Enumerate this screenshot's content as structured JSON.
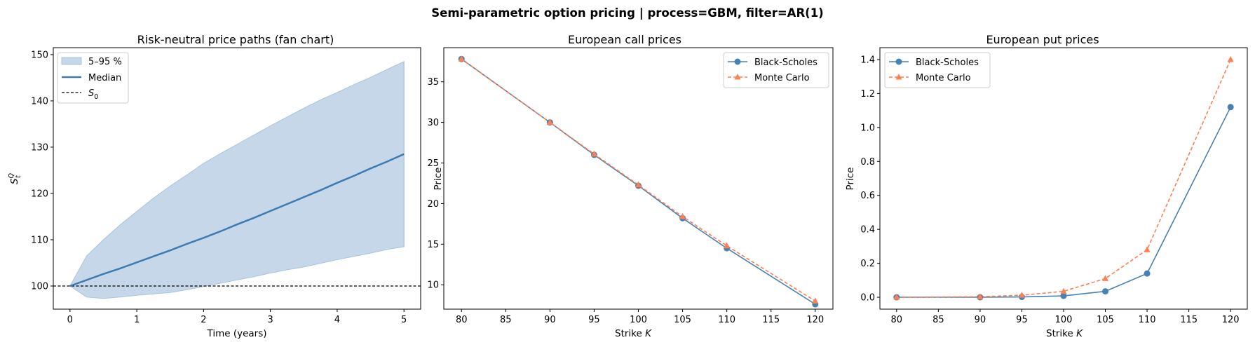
{
  "figure": {
    "suptitle": "Semi-parametric option pricing  |  process=GBM, filter=AR(1)",
    "colors": {
      "bs": "#4682b4",
      "mc": "#ff7f50",
      "band": "#c5d7e8",
      "band_edge": "#a9c4dc",
      "median": "#3f7ab0",
      "s0": "#000000"
    }
  },
  "chart_data": [
    {
      "type": "area",
      "title": "Risk-neutral price paths (fan chart)",
      "xlabel": "Time (years)",
      "ylabel": "S",
      "ylabel_sup": "Q",
      "ylabel_sub": "t",
      "xlim": [
        -0.25,
        5.25
      ],
      "ylim": [
        95,
        151.5
      ],
      "xticks": [
        0,
        1,
        2,
        3,
        4,
        5
      ],
      "yticks": [
        100,
        110,
        120,
        130,
        140,
        150
      ],
      "legend_position": "top-left",
      "legend": {
        "band": "5–95 %",
        "median": "Median",
        "s0_base": "S",
        "s0_sub": "0"
      },
      "s0": 100,
      "x": [
        0,
        0.25,
        0.5,
        0.75,
        1,
        1.25,
        1.5,
        1.75,
        2,
        2.25,
        2.5,
        2.75,
        3,
        3.25,
        3.5,
        3.75,
        4,
        4.25,
        4.5,
        4.75,
        5
      ],
      "median": [
        100,
        101.3,
        102.6,
        103.8,
        105.1,
        106.4,
        107.7,
        109.1,
        110.4,
        111.8,
        113.3,
        114.7,
        116.2,
        117.7,
        119.2,
        120.7,
        122.3,
        123.8,
        125.4,
        126.9,
        128.5
      ],
      "p95": [
        100,
        106.5,
        110.0,
        113.2,
        116.1,
        119.0,
        121.6,
        124.0,
        126.5,
        128.6,
        130.6,
        132.6,
        134.6,
        136.5,
        138.4,
        140.2,
        141.8,
        143.5,
        145.1,
        146.8,
        148.5
      ],
      "p5": [
        100,
        97.6,
        97.3,
        97.6,
        98.0,
        98.3,
        98.6,
        99.2,
        99.9,
        100.6,
        101.3,
        102.0,
        102.8,
        103.5,
        104.1,
        104.9,
        105.7,
        106.4,
        107.1,
        107.9,
        108.5
      ]
    },
    {
      "type": "line",
      "title": "European call prices",
      "xlabel": "Strike",
      "xlabel_italic": "K",
      "ylabel": "Price",
      "xlim": [
        78,
        122
      ],
      "ylim": [
        7.0,
        39.2
      ],
      "xticks": [
        80,
        85,
        90,
        95,
        100,
        105,
        110,
        115,
        120
      ],
      "yticks": [
        10,
        15,
        20,
        25,
        30,
        35
      ],
      "legend_position": "top-right",
      "x": [
        80,
        90,
        95,
        100,
        105,
        110,
        120
      ],
      "series": [
        {
          "name": "Black-Scholes",
          "values": [
            37.8,
            30.0,
            26.0,
            22.2,
            18.2,
            14.5,
            7.6
          ]
        },
        {
          "name": "Monte Carlo",
          "values": [
            37.8,
            30.0,
            26.1,
            22.3,
            18.4,
            14.8,
            8.0
          ]
        }
      ]
    },
    {
      "type": "line",
      "title": "European put prices",
      "xlabel": "Strike",
      "xlabel_italic": "K",
      "ylabel": "Price",
      "xlim": [
        78,
        122
      ],
      "ylim": [
        -0.07,
        1.47
      ],
      "xticks": [
        80,
        85,
        90,
        95,
        100,
        105,
        110,
        115,
        120
      ],
      "yticks": [
        0.0,
        0.2,
        0.4,
        0.6,
        0.8,
        1.0,
        1.2,
        1.4
      ],
      "legend_position": "top-left",
      "x": [
        80,
        90,
        95,
        100,
        105,
        110,
        120
      ],
      "series": [
        {
          "name": "Black-Scholes",
          "values": [
            0.0,
            0.0,
            0.002,
            0.008,
            0.035,
            0.14,
            1.12
          ]
        },
        {
          "name": "Monte Carlo",
          "values": [
            0.0,
            0.003,
            0.012,
            0.035,
            0.11,
            0.28,
            1.4
          ]
        }
      ]
    }
  ]
}
